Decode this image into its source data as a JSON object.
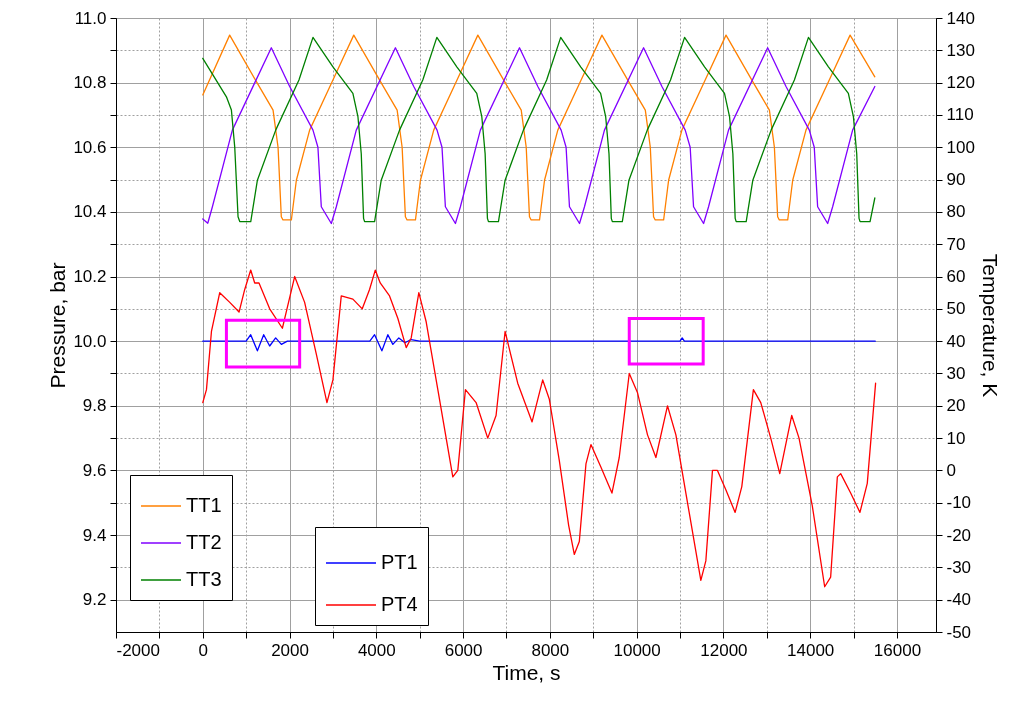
{
  "chart_data": {
    "type": "line",
    "xlabel": "Time, s",
    "ylabel": "Pressure, bar",
    "y2label": "Temperature, K",
    "xlim": [
      -2000,
      16900
    ],
    "xticks": [
      -2000,
      {
        "value": -1000,
        "label": null
      },
      0,
      {
        "value": 1000,
        "label": null
      },
      2000,
      {
        "value": 3000,
        "label": null
      },
      4000,
      {
        "value": 5000,
        "label": null
      },
      6000,
      {
        "value": 7000,
        "label": null
      },
      8000,
      {
        "value": 9000,
        "label": null
      },
      10000,
      {
        "value": 11000,
        "label": null
      },
      12000,
      {
        "value": 13000,
        "label": null
      },
      14000,
      {
        "value": 15000,
        "label": null
      },
      16000
    ],
    "ylim": [
      9.1,
      11.0
    ],
    "yticks": [
      9.2,
      {
        "value": 9.3,
        "label": null
      },
      9.4,
      {
        "value": 9.5,
        "label": null
      },
      9.6,
      {
        "value": 9.7,
        "label": null
      },
      9.8,
      {
        "value": 9.9,
        "label": null
      },
      {
        "value": 10.0,
        "label": "10.0"
      },
      {
        "value": 10.1,
        "label": null
      },
      10.2,
      {
        "value": 10.3,
        "label": null
      },
      10.4,
      {
        "value": 10.5,
        "label": null
      },
      10.6,
      {
        "value": 10.7,
        "label": null
      },
      10.8,
      {
        "value": 10.9,
        "label": null
      },
      {
        "value": 11.0,
        "label": "11.0"
      }
    ],
    "y2lim": [
      -50,
      140
    ],
    "y2ticks": [
      -50,
      -40,
      -30,
      -20,
      -10,
      0,
      10,
      20,
      30,
      40,
      50,
      60,
      70,
      80,
      90,
      100,
      110,
      120,
      130,
      140
    ],
    "grid": true,
    "legend": "bottom left",
    "series": [
      {
        "name": "TT1",
        "color": "#ff8000",
        "axis": "y2",
        "x": [
          0,
          620,
          1236,
          1620,
          1735,
          1810,
          1849,
          2042,
          2157,
          2463,
          3000,
          3480,
          4096,
          4480,
          4595,
          4670,
          4709,
          4902,
          5017,
          5323,
          5860,
          6340,
          6956,
          7340,
          7455,
          7530,
          7569,
          7762,
          7877,
          8183,
          8720,
          9200,
          9816,
          10200,
          10315,
          10390,
          10429,
          10622,
          10737,
          11043,
          11580,
          12060,
          12676,
          13060,
          13175,
          13250,
          13289,
          13482,
          13597,
          13903,
          14440,
          14920,
          15490
        ],
        "values": [
          116.2,
          134.7,
          120.3,
          111.5,
          100,
          78.5,
          77.5,
          77.5,
          89.8,
          105.3,
          120.8,
          134.7,
          120.3,
          111.5,
          100,
          78.5,
          77.5,
          77.5,
          89.8,
          105.3,
          120.8,
          134.7,
          120.3,
          111.5,
          100,
          78.5,
          77.5,
          77.5,
          89.8,
          105.3,
          120.8,
          134.7,
          120.3,
          111.5,
          100,
          78.5,
          77.5,
          77.5,
          89.8,
          105.3,
          120.8,
          134.7,
          120.3,
          111.5,
          100,
          78.5,
          77.5,
          77.5,
          89.8,
          105.3,
          120.8,
          134.7,
          121.8
        ]
      },
      {
        "name": "TT2",
        "color": "#8000ff",
        "axis": "y2",
        "x": [
          0,
          115,
          222,
          682,
          1580,
          2003,
          2540,
          2654,
          2732,
          2963,
          3078,
          3538,
          4440,
          4863,
          5400,
          5514,
          5592,
          5823,
          5938,
          6398,
          7300,
          7723,
          8260,
          8374,
          8452,
          8683,
          8798,
          9258,
          10160,
          10583,
          11120,
          11234,
          11312,
          11543,
          11658,
          12118,
          13020,
          13443,
          13980,
          14094,
          14172,
          14403,
          14518,
          14978,
          15490
        ],
        "values": [
          77.8,
          76.5,
          81.6,
          105.3,
          130.8,
          118.8,
          105.3,
          100,
          81.6,
          76.4,
          81.6,
          105.3,
          130.8,
          118.8,
          105.3,
          100,
          81.6,
          76.4,
          81.6,
          105.3,
          130.8,
          118.8,
          105.3,
          100,
          81.6,
          76.4,
          81.6,
          105.3,
          130.8,
          118.8,
          105.3,
          100,
          81.6,
          76.4,
          81.6,
          105.3,
          130.8,
          118.8,
          105.3,
          100,
          81.6,
          76.4,
          81.6,
          105.3,
          118.8
        ]
      },
      {
        "name": "TT3",
        "color": "#008000",
        "axis": "y2",
        "x": [
          0,
          545,
          660,
          737,
          813,
          852,
          1106,
          1259,
          1681,
          2217,
          2540,
          3000,
          3460,
          3576,
          3653,
          3706,
          3730,
          3960,
          4113,
          4535,
          5071,
          5395,
          5855,
          6315,
          6431,
          6508,
          6561,
          6585,
          6815,
          6968,
          7390,
          7926,
          8250,
          8710,
          9170,
          9286,
          9363,
          9416,
          9440,
          9670,
          9823,
          10245,
          10781,
          11105,
          11565,
          12025,
          12141,
          12218,
          12271,
          12295,
          12525,
          12678,
          13100,
          13636,
          13960,
          14420,
          14880,
          14996,
          15073,
          15126,
          15150,
          15380,
          15490
        ],
        "values": [
          127.5,
          115.6,
          111.5,
          100,
          78.5,
          77,
          77,
          89.8,
          105.3,
          120.8,
          134,
          124.9,
          116.7,
          109.5,
          98,
          78,
          77,
          77,
          89.8,
          105.3,
          120.8,
          134,
          124.9,
          116.7,
          109.5,
          98,
          78,
          77,
          77,
          89.8,
          105.3,
          120.8,
          134,
          124.9,
          116.7,
          109.5,
          98,
          78,
          77,
          77,
          89.8,
          105.3,
          120.8,
          134,
          124.9,
          116.7,
          109.5,
          98,
          78,
          77,
          77,
          89.8,
          105.3,
          120.8,
          134,
          124.9,
          116.7,
          109.5,
          98,
          78,
          77,
          77,
          84.3
        ]
      },
      {
        "name": "PT1",
        "color": "#0000ff",
        "x": [
          0,
          1000,
          1105,
          1259,
          1404,
          1542,
          1680,
          1812,
          1950,
          3850,
          3960,
          4128,
          4266,
          4381,
          4519,
          4660,
          4800,
          5000,
          11000,
          11050,
          11100,
          15500
        ],
        "values": [
          10.0,
          10.0,
          10.02,
          9.97,
          10.02,
          9.985,
          10.01,
          9.99,
          10.0,
          10.0,
          10.02,
          9.97,
          10.02,
          9.99,
          10.01,
          9.995,
          10.005,
          10.0,
          10.0,
          10.01,
          10.0,
          10.0
        ]
      },
      {
        "name": "PT4",
        "color": "#ff0000",
        "x": [
          0,
          85,
          200,
          391,
          622,
          836,
          967,
          1105,
          1197,
          1296,
          1542,
          1835,
          1941,
          2118,
          2348,
          2617,
          2862,
          3000,
          3192,
          3460,
          3676,
          3844,
          3976,
          4090,
          4305,
          4497,
          4689,
          4804,
          4980,
          5149,
          5418,
          5763,
          5878,
          6054,
          6300,
          6568,
          6760,
          6968,
          7259,
          7590,
          7835,
          7988,
          8218,
          8433,
          8563,
          8679,
          8832,
          8947,
          9178,
          9431,
          9599,
          9830,
          10021,
          10251,
          10444,
          10711,
          10905,
          11211,
          11480,
          11595,
          11748,
          11863,
          12056,
          12270,
          12424,
          12691,
          12861,
          13091,
          13299,
          13575,
          13743,
          14049,
          14334,
          14472,
          14626,
          14703,
          14933,
          15147,
          15316,
          15508
        ],
        "values": [
          9.81,
          9.85,
          10.03,
          10.15,
          10.12,
          10.09,
          10.16,
          10.22,
          10.18,
          10.18,
          10.1,
          10.04,
          10.1,
          10.2,
          10.12,
          9.96,
          9.81,
          9.88,
          10.14,
          10.13,
          10.1,
          10.16,
          10.22,
          10.18,
          10.14,
          10.07,
          9.98,
          10.01,
          10.15,
          10.06,
          9.85,
          9.58,
          9.6,
          9.85,
          9.81,
          9.7,
          9.77,
          10.03,
          9.87,
          9.75,
          9.88,
          9.82,
          9.63,
          9.43,
          9.34,
          9.38,
          9.62,
          9.68,
          9.61,
          9.53,
          9.64,
          9.9,
          9.84,
          9.71,
          9.64,
          9.8,
          9.71,
          9.47,
          9.26,
          9.32,
          9.6,
          9.6,
          9.54,
          9.47,
          9.55,
          9.85,
          9.81,
          9.7,
          9.59,
          9.77,
          9.7,
          9.49,
          9.24,
          9.27,
          9.58,
          9.59,
          9.53,
          9.47,
          9.56,
          9.87
        ]
      }
    ]
  }
}
